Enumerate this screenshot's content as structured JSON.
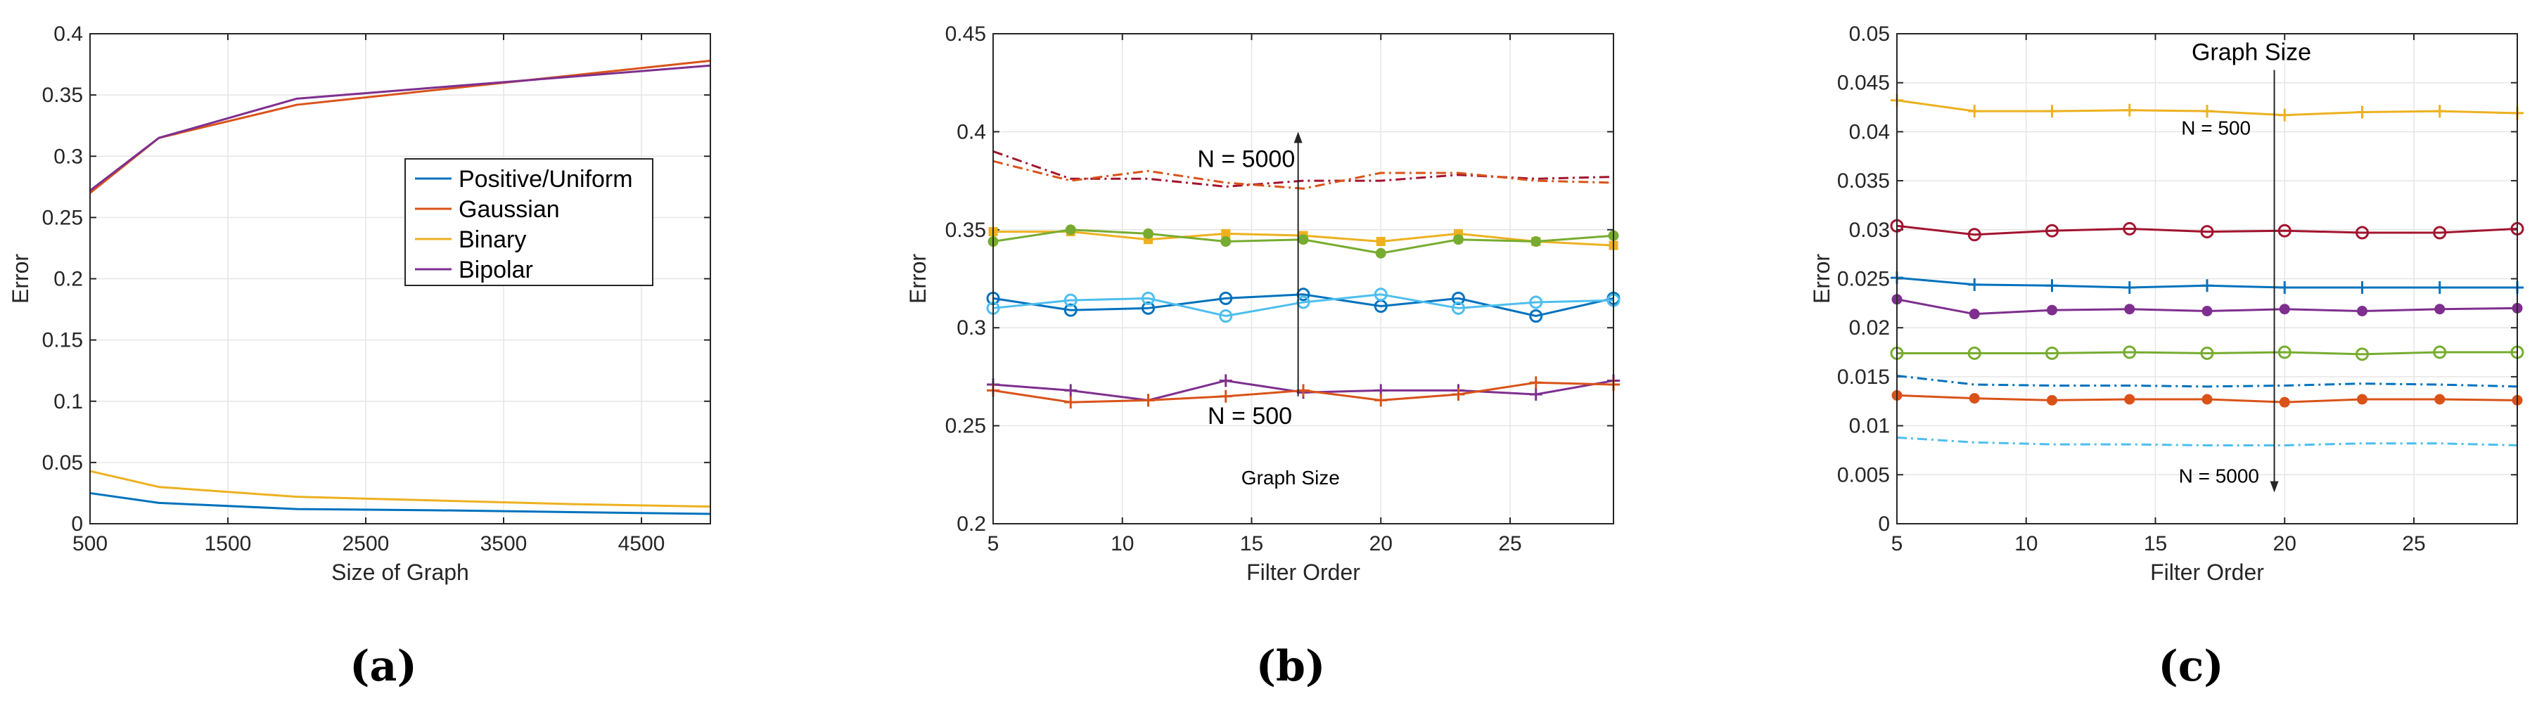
{
  "chart_data": [
    {
      "id": "a",
      "type": "line",
      "caption": "(a)",
      "xlabel": "Size of Graph",
      "ylabel": "Error",
      "xlim": [
        500,
        5000
      ],
      "ylim": [
        0,
        0.4
      ],
      "xticks": [
        "500",
        "1500",
        "2500",
        "3500",
        "4500"
      ],
      "yticks": [
        "0",
        "0.05",
        "0.1",
        "0.15",
        "0.2",
        "0.25",
        "0.3",
        "0.35",
        "0.4"
      ],
      "grid": true,
      "legend_position": "center-right",
      "series": [
        {
          "name": "Positive/Uniform",
          "color": "#0072BD",
          "x": [
            500,
            1000,
            2000,
            3000,
            4000,
            5000
          ],
          "y": [
            0.025,
            0.017,
            0.012,
            0.011,
            0.0095,
            0.008
          ]
        },
        {
          "name": "Gaussian",
          "color": "#D95319",
          "x": [
            500,
            1000,
            2000,
            3000,
            4000,
            5000
          ],
          "y": [
            0.27,
            0.315,
            0.342,
            0.354,
            0.366,
            0.378
          ]
        },
        {
          "name": "Binary",
          "color": "#EDB120",
          "x": [
            500,
            1000,
            2000,
            3000,
            4000,
            5000
          ],
          "y": [
            0.043,
            0.03,
            0.022,
            0.019,
            0.016,
            0.014
          ]
        },
        {
          "name": "Bipolar",
          "color": "#7E2F8E",
          "x": [
            500,
            1000,
            2000,
            3000,
            4000,
            5000
          ],
          "y": [
            0.272,
            0.315,
            0.347,
            0.356,
            0.365,
            0.374
          ]
        }
      ]
    },
    {
      "id": "b",
      "type": "line",
      "caption": "(b)",
      "xlabel": "Filter Order",
      "ylabel": "Error",
      "xlim": [
        5,
        29
      ],
      "ylim": [
        0.2,
        0.45
      ],
      "xticks": [
        "5",
        "10",
        "15",
        "20",
        "25"
      ],
      "yticks": [
        "0.2",
        "0.25",
        "0.3",
        "0.35",
        "0.4",
        "0.45"
      ],
      "grid": true,
      "annotations": {
        "top": "N = 5000",
        "bottom": "N = 500",
        "axis": "Graph Size"
      },
      "series": [
        {
          "color": "#A2142F",
          "marker": "none",
          "dash": "dashdot",
          "x": [
            5,
            8,
            11,
            14,
            17,
            20,
            23,
            26,
            29
          ],
          "y": [
            0.39,
            0.376,
            0.376,
            0.372,
            0.375,
            0.375,
            0.378,
            0.376,
            0.377
          ]
        },
        {
          "color": "#D95319",
          "marker": "none",
          "dash": "dashdot",
          "x": [
            5,
            8,
            11,
            14,
            17,
            20,
            23,
            26,
            29
          ],
          "y": [
            0.385,
            0.375,
            0.38,
            0.374,
            0.371,
            0.379,
            0.379,
            0.375,
            0.374
          ]
        },
        {
          "color": "#EDB120",
          "marker": "square",
          "x": [
            5,
            8,
            11,
            14,
            17,
            20,
            23,
            26,
            29
          ],
          "y": [
            0.349,
            0.349,
            0.345,
            0.348,
            0.347,
            0.344,
            0.348,
            0.344,
            0.342
          ]
        },
        {
          "color": "#77AC30",
          "marker": "dot",
          "x": [
            5,
            8,
            11,
            14,
            17,
            20,
            23,
            26,
            29
          ],
          "y": [
            0.344,
            0.35,
            0.348,
            0.344,
            0.345,
            0.338,
            0.345,
            0.344,
            0.347
          ]
        },
        {
          "color": "#0072BD",
          "marker": "circle",
          "x": [
            5,
            8,
            11,
            14,
            17,
            20,
            23,
            26,
            29
          ],
          "y": [
            0.315,
            0.309,
            0.31,
            0.315,
            0.317,
            0.311,
            0.315,
            0.306,
            0.315
          ]
        },
        {
          "color": "#4DBEEE",
          "marker": "circle",
          "x": [
            5,
            8,
            11,
            14,
            17,
            20,
            23,
            26,
            29
          ],
          "y": [
            0.31,
            0.314,
            0.315,
            0.306,
            0.313,
            0.317,
            0.31,
            0.313,
            0.314
          ]
        },
        {
          "color": "#7E2F8E",
          "marker": "plus",
          "x": [
            5,
            8,
            11,
            14,
            17,
            20,
            23,
            26,
            29
          ],
          "y": [
            0.271,
            0.268,
            0.263,
            0.273,
            0.267,
            0.268,
            0.268,
            0.266,
            0.273
          ]
        },
        {
          "color": "#D95319",
          "marker": "plus",
          "x": [
            5,
            8,
            11,
            14,
            17,
            20,
            23,
            26,
            29
          ],
          "y": [
            0.268,
            0.262,
            0.263,
            0.265,
            0.268,
            0.263,
            0.266,
            0.272,
            0.271
          ]
        }
      ]
    },
    {
      "id": "c",
      "type": "line",
      "caption": "(c)",
      "xlabel": "Filter Order",
      "ylabel": "Error",
      "xlim": [
        5,
        29
      ],
      "ylim": [
        0,
        0.05
      ],
      "xticks": [
        "5",
        "10",
        "15",
        "20",
        "25"
      ],
      "yticks": [
        "0",
        "0.005",
        "0.01",
        "0.015",
        "0.02",
        "0.025",
        "0.03",
        "0.035",
        "0.04",
        "0.045",
        "0.05"
      ],
      "grid": true,
      "annotations": {
        "top": "N = 500",
        "bottom": "N = 5000",
        "axis": "Graph Size"
      },
      "series": [
        {
          "color": "#EDB120",
          "marker": "plus",
          "x": [
            5,
            8,
            11,
            14,
            17,
            20,
            23,
            26,
            29
          ],
          "y": [
            0.0432,
            0.0421,
            0.0421,
            0.0422,
            0.0421,
            0.0417,
            0.042,
            0.0421,
            0.0419
          ]
        },
        {
          "color": "#A2142F",
          "marker": "circle",
          "x": [
            5,
            8,
            11,
            14,
            17,
            20,
            23,
            26,
            29
          ],
          "y": [
            0.0304,
            0.0295,
            0.0299,
            0.0301,
            0.0298,
            0.0299,
            0.0297,
            0.0297,
            0.0301
          ]
        },
        {
          "color": "#0072BD",
          "marker": "plus",
          "x": [
            5,
            8,
            11,
            14,
            17,
            20,
            23,
            26,
            29
          ],
          "y": [
            0.0251,
            0.0244,
            0.0243,
            0.0241,
            0.0243,
            0.0241,
            0.0241,
            0.0241,
            0.0241
          ]
        },
        {
          "color": "#7E2F8E",
          "marker": "dot",
          "x": [
            5,
            8,
            11,
            14,
            17,
            20,
            23,
            26,
            29
          ],
          "y": [
            0.0229,
            0.0214,
            0.0218,
            0.0219,
            0.0217,
            0.0219,
            0.0217,
            0.0219,
            0.022
          ]
        },
        {
          "color": "#77AC30",
          "marker": "circle",
          "x": [
            5,
            8,
            11,
            14,
            17,
            20,
            23,
            26,
            29
          ],
          "y": [
            0.0174,
            0.0174,
            0.0174,
            0.0175,
            0.0174,
            0.0175,
            0.0173,
            0.0175,
            0.0175
          ]
        },
        {
          "color": "#0072BD",
          "marker": "none",
          "dash": "dashdot",
          "x": [
            5,
            8,
            11,
            14,
            17,
            20,
            23,
            26,
            29
          ],
          "y": [
            0.0151,
            0.0142,
            0.0141,
            0.0141,
            0.014,
            0.0141,
            0.0143,
            0.0142,
            0.014
          ]
        },
        {
          "color": "#D95319",
          "marker": "dot",
          "x": [
            5,
            8,
            11,
            14,
            17,
            20,
            23,
            26,
            29
          ],
          "y": [
            0.0131,
            0.0128,
            0.0126,
            0.0127,
            0.0127,
            0.0124,
            0.0127,
            0.0127,
            0.0126
          ]
        },
        {
          "color": "#4DBEEE",
          "marker": "none",
          "dash": "dashdot",
          "x": [
            5,
            8,
            11,
            14,
            17,
            20,
            23,
            26,
            29
          ],
          "y": [
            0.0088,
            0.0083,
            0.0081,
            0.0081,
            0.008,
            0.008,
            0.0082,
            0.0082,
            0.008
          ]
        }
      ]
    }
  ]
}
